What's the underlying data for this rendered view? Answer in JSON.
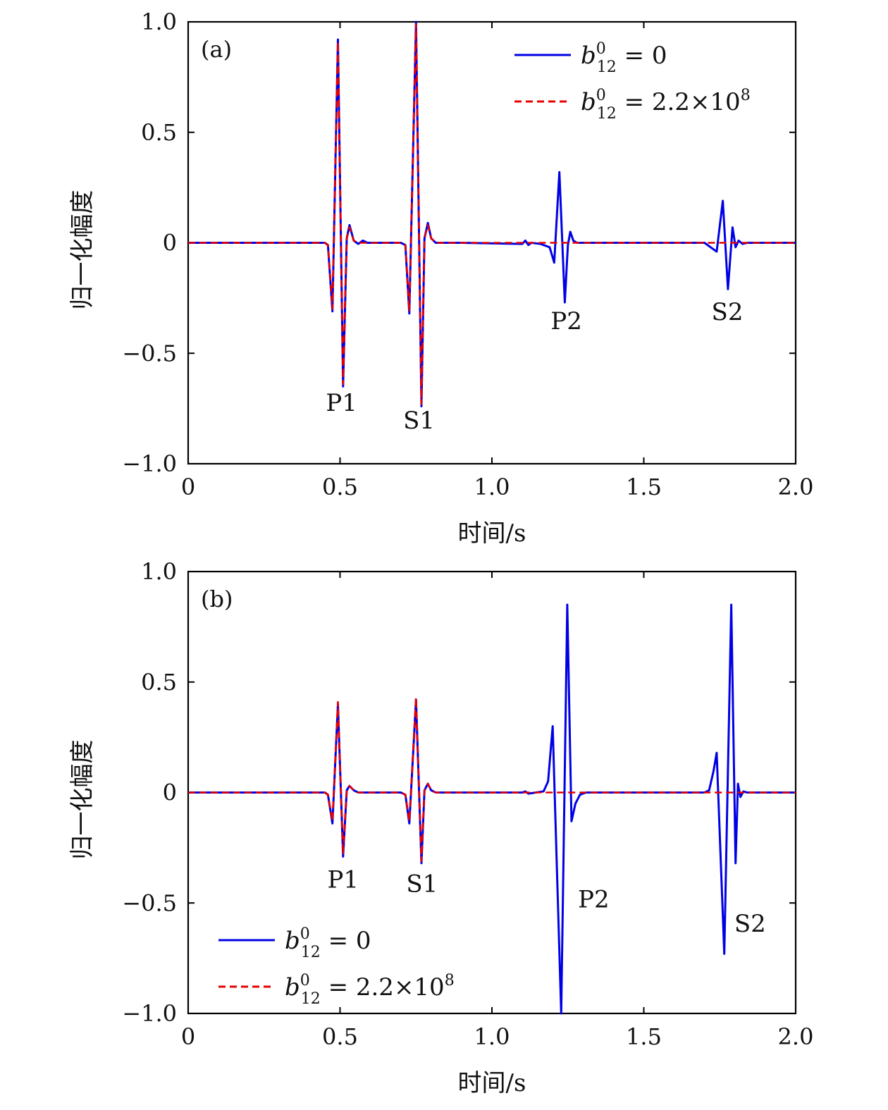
{
  "chart_data": [
    {
      "type": "line",
      "panel_label": "(a)",
      "xlabel": "时间/s",
      "ylabel": "归一化幅度",
      "xlim": [
        0,
        2.0
      ],
      "ylim": [
        -1.0,
        1.0
      ],
      "xticks": [
        "0",
        "0.5",
        "1.0",
        "1.5",
        "2.0"
      ],
      "yticks": [
        "−1.0",
        "−0.5",
        "0",
        "0.5",
        "1.0"
      ],
      "legend_position": "top-right",
      "legend": [
        {
          "base": "b",
          "sup": "0",
          "sub": "12",
          "rest": " = 0",
          "exp": ""
        },
        {
          "base": "b",
          "sup": "0",
          "sub": "12",
          "rest": " = 2.2×10",
          "exp": "8"
        }
      ],
      "annotations": [
        {
          "text": "P1",
          "x": 0.505,
          "y": -0.76
        },
        {
          "text": "S1",
          "x": 0.76,
          "y": -0.84
        },
        {
          "text": "P2",
          "x": 1.245,
          "y": -0.39
        },
        {
          "text": "S2",
          "x": 1.775,
          "y": -0.35
        }
      ],
      "series": [
        {
          "name": "b12^0 = 0",
          "color": "#0000e6",
          "style": "solid",
          "points": [
            [
              0,
              0
            ],
            [
              0.45,
              0
            ],
            [
              0.46,
              -0.01
            ],
            [
              0.475,
              -0.31
            ],
            [
              0.493,
              0.92
            ],
            [
              0.51,
              -0.65
            ],
            [
              0.522,
              0.02
            ],
            [
              0.531,
              0.08
            ],
            [
              0.545,
              0.01
            ],
            [
              0.56,
              -0.005
            ],
            [
              0.575,
              0.01
            ],
            [
              0.59,
              0
            ],
            [
              0.7,
              0
            ],
            [
              0.715,
              -0.01
            ],
            [
              0.728,
              -0.32
            ],
            [
              0.75,
              1.0
            ],
            [
              0.768,
              -0.74
            ],
            [
              0.778,
              0.02
            ],
            [
              0.789,
              0.09
            ],
            [
              0.8,
              0.02
            ],
            [
              0.815,
              0
            ],
            [
              0.9,
              0
            ],
            [
              1.1,
              -0.005
            ],
            [
              1.11,
              0.01
            ],
            [
              1.12,
              -0.01
            ],
            [
              1.13,
              0
            ],
            [
              1.16,
              -0.005
            ],
            [
              1.19,
              -0.02
            ],
            [
              1.205,
              -0.09
            ],
            [
              1.222,
              0.32
            ],
            [
              1.24,
              -0.27
            ],
            [
              1.25,
              -0.01
            ],
            [
              1.258,
              0.05
            ],
            [
              1.268,
              0.01
            ],
            [
              1.28,
              0
            ],
            [
              1.7,
              0
            ],
            [
              1.72,
              -0.02
            ],
            [
              1.74,
              -0.04
            ],
            [
              1.76,
              0.19
            ],
            [
              1.777,
              -0.21
            ],
            [
              1.792,
              0.07
            ],
            [
              1.802,
              -0.02
            ],
            [
              1.812,
              0.01
            ],
            [
              1.825,
              -0.005
            ],
            [
              1.84,
              0
            ],
            [
              2.0,
              0
            ]
          ]
        },
        {
          "name": "b12^0 = 2.2×10^8",
          "color": "#e60000",
          "style": "dashed",
          "points": [
            [
              0,
              0
            ],
            [
              0.45,
              0
            ],
            [
              0.46,
              -0.01
            ],
            [
              0.475,
              -0.3
            ],
            [
              0.493,
              0.91
            ],
            [
              0.51,
              -0.64
            ],
            [
              0.522,
              0.02
            ],
            [
              0.531,
              0.07
            ],
            [
              0.545,
              0.01
            ],
            [
              0.56,
              0
            ],
            [
              0.7,
              0
            ],
            [
              0.715,
              -0.01
            ],
            [
              0.728,
              -0.31
            ],
            [
              0.75,
              0.99
            ],
            [
              0.768,
              -0.73
            ],
            [
              0.778,
              0.02
            ],
            [
              0.789,
              0.08
            ],
            [
              0.8,
              0.02
            ],
            [
              0.815,
              0
            ],
            [
              2.0,
              0
            ]
          ]
        }
      ]
    },
    {
      "type": "line",
      "panel_label": "(b)",
      "xlabel": "时间/s",
      "ylabel": "归一化幅度",
      "xlim": [
        0,
        2.0
      ],
      "ylim": [
        -1.0,
        1.0
      ],
      "xticks": [
        "0",
        "0.5",
        "1.0",
        "1.5",
        "2.0"
      ],
      "yticks": [
        "−1.0",
        "−0.5",
        "0",
        "0.5",
        "1.0"
      ],
      "legend_position": "bottom-left",
      "legend": [
        {
          "base": "b",
          "sup": "0",
          "sub": "12",
          "rest": " = 0",
          "exp": ""
        },
        {
          "base": "b",
          "sup": "0",
          "sub": "12",
          "rest": " = 2.2×10",
          "exp": "8"
        }
      ],
      "annotations": [
        {
          "text": "P1",
          "x": 0.51,
          "y": -0.43
        },
        {
          "text": "S1",
          "x": 0.77,
          "y": -0.45
        },
        {
          "text": "P2",
          "x": 1.335,
          "y": -0.52
        },
        {
          "text": "S2",
          "x": 1.85,
          "y": -0.63
        }
      ],
      "series": [
        {
          "name": "b12^0 = 0",
          "color": "#0000e6",
          "style": "solid",
          "points": [
            [
              0,
              0
            ],
            [
              0.45,
              0
            ],
            [
              0.46,
              -0.01
            ],
            [
              0.475,
              -0.14
            ],
            [
              0.493,
              0.4
            ],
            [
              0.51,
              -0.29
            ],
            [
              0.522,
              0.01
            ],
            [
              0.531,
              0.03
            ],
            [
              0.545,
              0.01
            ],
            [
              0.56,
              0
            ],
            [
              0.7,
              0
            ],
            [
              0.715,
              -0.01
            ],
            [
              0.728,
              -0.14
            ],
            [
              0.75,
              0.42
            ],
            [
              0.768,
              -0.32
            ],
            [
              0.778,
              0.01
            ],
            [
              0.789,
              0.04
            ],
            [
              0.8,
              0.01
            ],
            [
              0.815,
              0
            ],
            [
              1.1,
              0
            ],
            [
              1.11,
              0.005
            ],
            [
              1.12,
              -0.005
            ],
            [
              1.17,
              0.005
            ],
            [
              1.185,
              0.05
            ],
            [
              1.2,
              0.3
            ],
            [
              1.228,
              -1.0
            ],
            [
              1.248,
              0.85
            ],
            [
              1.262,
              -0.13
            ],
            [
              1.275,
              -0.05
            ],
            [
              1.29,
              -0.01
            ],
            [
              1.31,
              0
            ],
            [
              1.7,
              0
            ],
            [
              1.715,
              0.01
            ],
            [
              1.73,
              0.1
            ],
            [
              1.74,
              0.18
            ],
            [
              1.765,
              -0.73
            ],
            [
              1.788,
              0.85
            ],
            [
              1.802,
              -0.32
            ],
            [
              1.81,
              0.04
            ],
            [
              1.818,
              -0.02
            ],
            [
              1.828,
              0.005
            ],
            [
              1.84,
              0
            ],
            [
              2.0,
              0
            ]
          ]
        },
        {
          "name": "b12^0 = 2.2×10^8",
          "color": "#e60000",
          "style": "dashed",
          "points": [
            [
              0,
              0
            ],
            [
              0.45,
              0
            ],
            [
              0.46,
              -0.01
            ],
            [
              0.475,
              -0.13
            ],
            [
              0.493,
              0.41
            ],
            [
              0.51,
              -0.28
            ],
            [
              0.522,
              0.01
            ],
            [
              0.531,
              0.03
            ],
            [
              0.545,
              0.01
            ],
            [
              0.56,
              0
            ],
            [
              0.7,
              0
            ],
            [
              0.715,
              -0.01
            ],
            [
              0.728,
              -0.13
            ],
            [
              0.75,
              0.43
            ],
            [
              0.768,
              -0.31
            ],
            [
              0.778,
              0.01
            ],
            [
              0.789,
              0.04
            ],
            [
              0.8,
              0.01
            ],
            [
              0.815,
              0
            ],
            [
              2.0,
              0
            ]
          ]
        }
      ]
    }
  ]
}
